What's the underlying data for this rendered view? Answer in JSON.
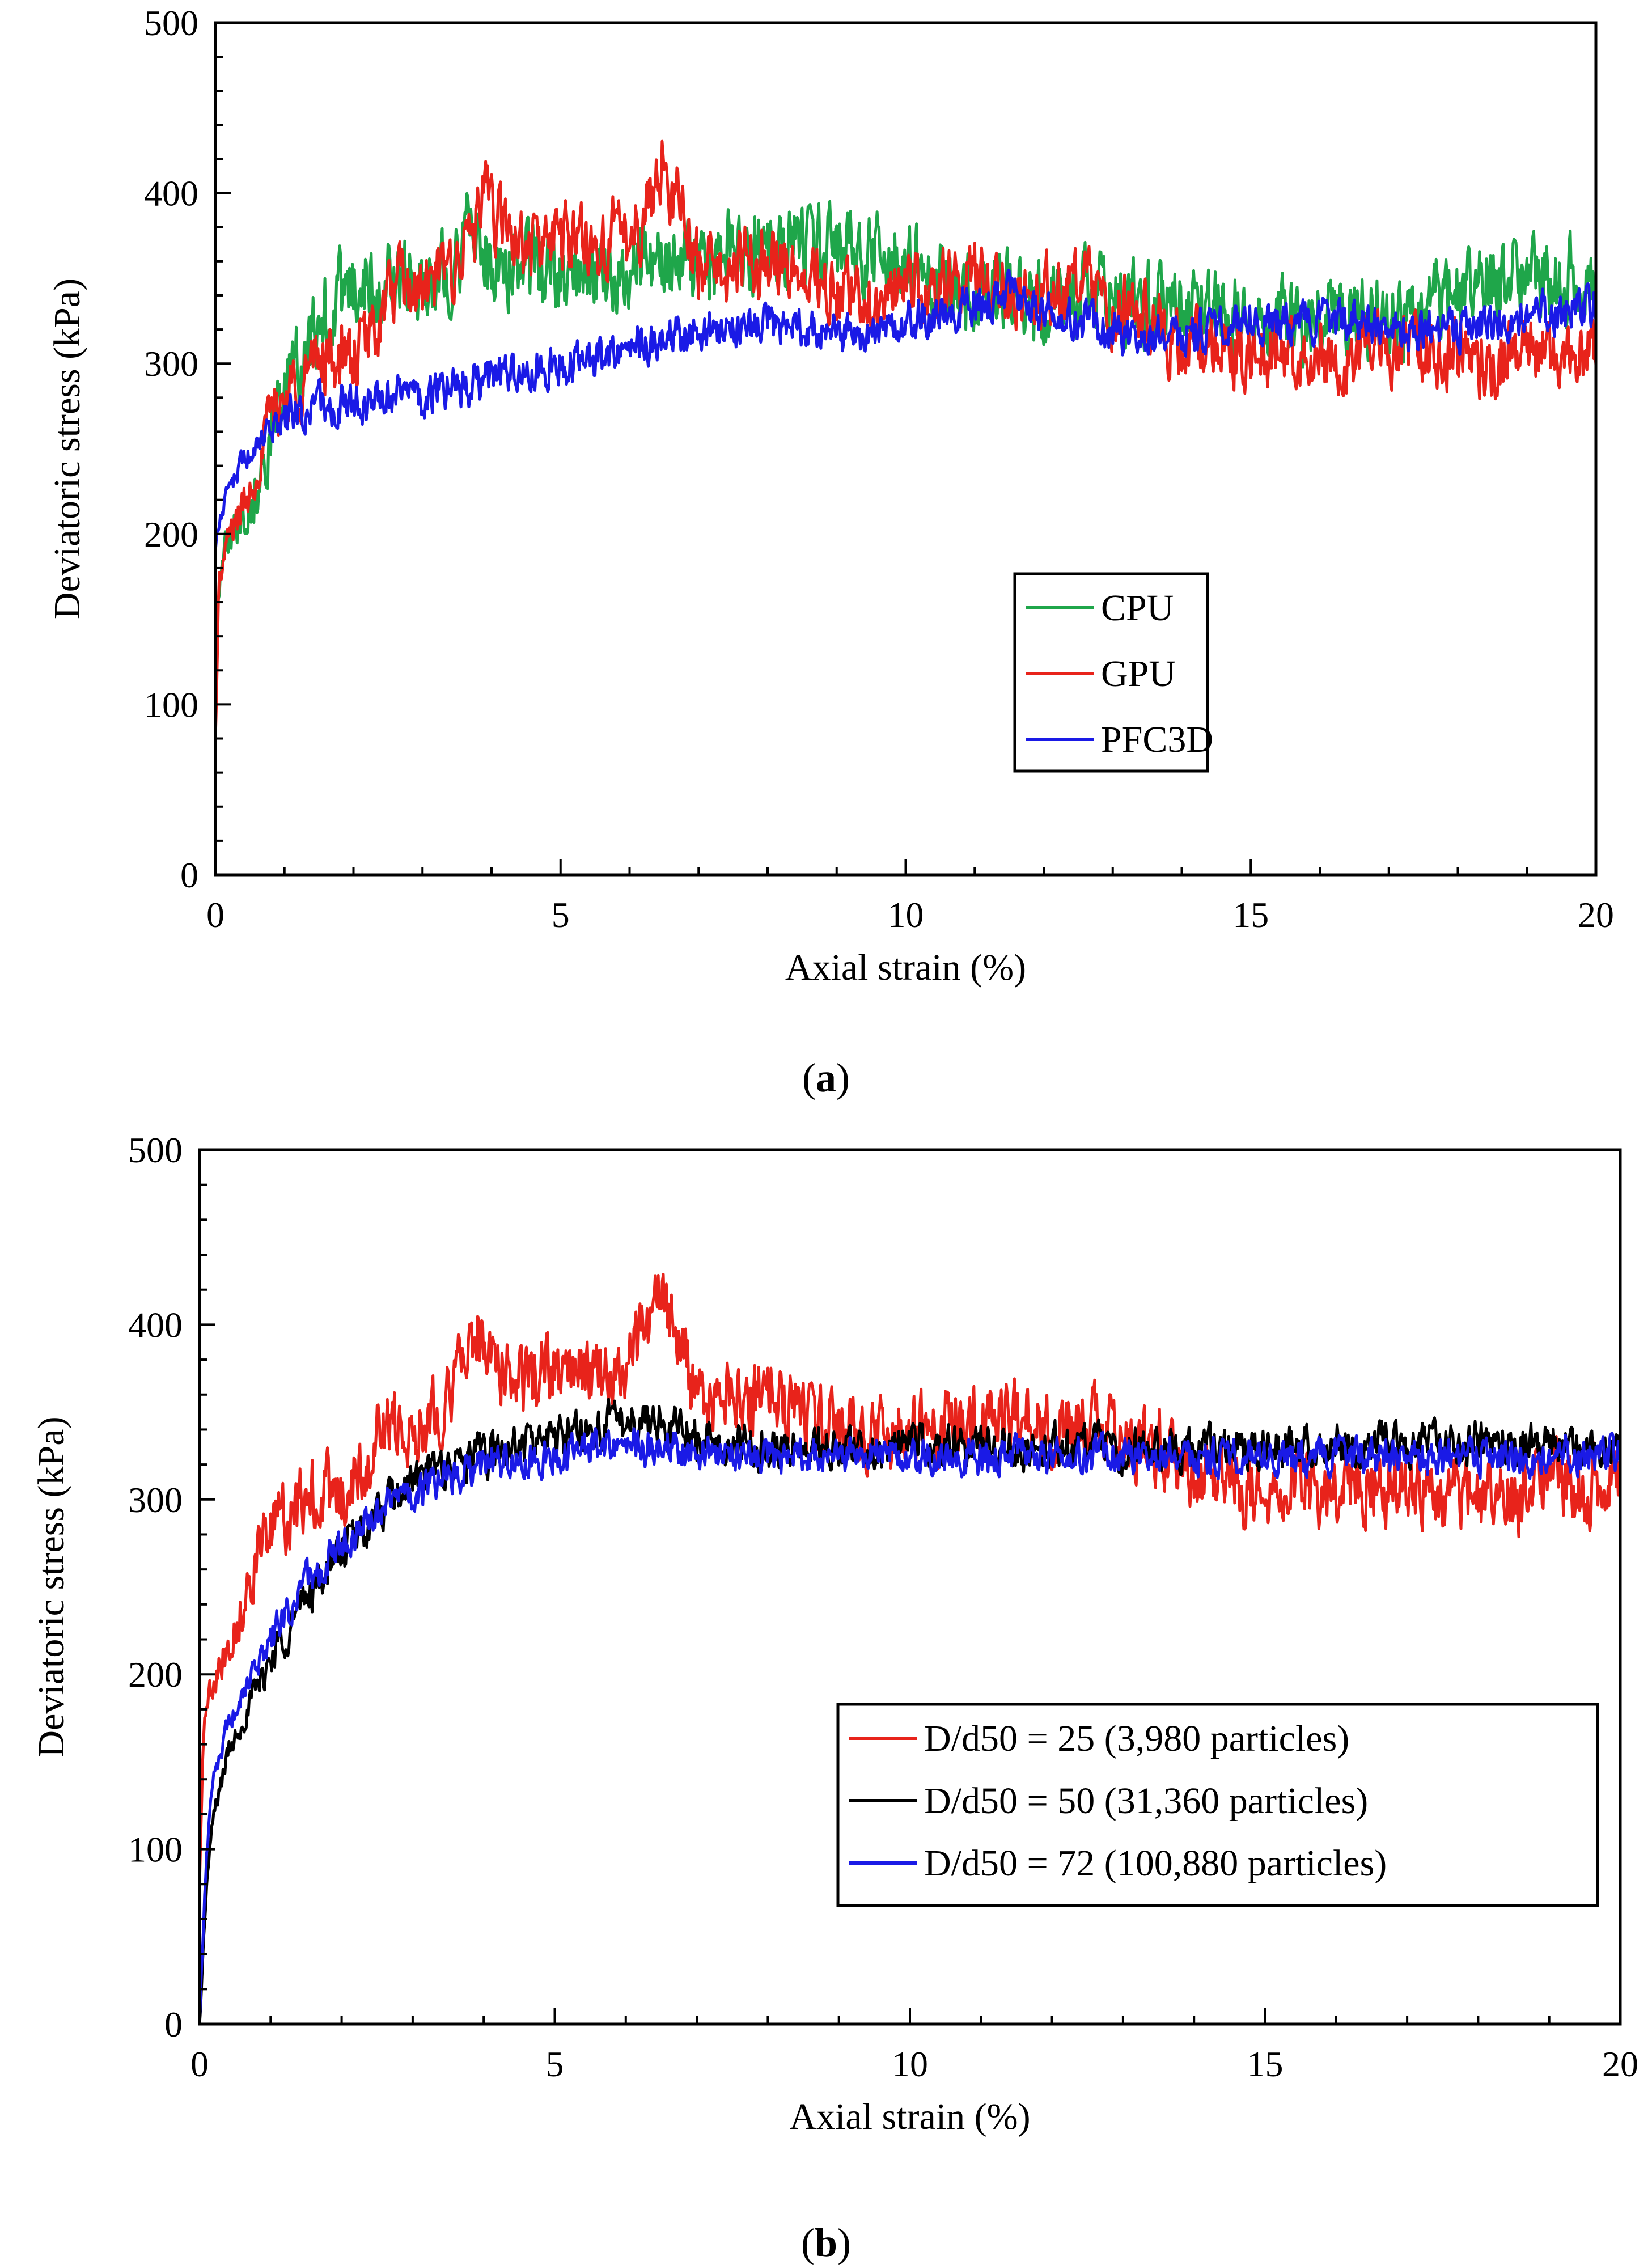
{
  "figure": {
    "captions": [
      "a",
      "b"
    ]
  },
  "chart_data": [
    {
      "type": "line",
      "panel": "a",
      "xlabel": "Axial strain (%)",
      "ylabel": "Deviatoric stress (kPa)",
      "xlim": [
        0,
        20
      ],
      "ylim": [
        0,
        500
      ],
      "xticks": [
        0,
        5,
        10,
        15,
        20
      ],
      "yticks": [
        0,
        100,
        200,
        300,
        400,
        500
      ],
      "grid": false,
      "legend_position": "center-right",
      "series": [
        {
          "name": "CPU",
          "color": "#1fa64a",
          "noise": 28,
          "x": [
            0,
            0.2,
            0.5,
            0.8,
            1.2,
            1.6,
            2.0,
            2.5,
            3.0,
            3.5,
            3.7,
            4.0,
            4.5,
            5.0,
            5.5,
            6.0,
            6.5,
            7.0,
            7.5,
            8.0,
            8.5,
            9.0,
            9.5,
            10.0,
            10.5,
            11.0,
            11.5,
            12.0,
            12.5,
            13.0,
            13.5,
            14.0,
            14.5,
            15.0,
            15.5,
            16.0,
            16.5,
            17.0,
            17.5,
            18.0,
            18.5,
            19.0,
            19.5,
            20.0
          ],
          "y": [
            160,
            205,
            215,
            260,
            300,
            330,
            345,
            350,
            352,
            360,
            380,
            355,
            360,
            350,
            350,
            352,
            355,
            360,
            365,
            370,
            372,
            368,
            365,
            360,
            350,
            345,
            340,
            338,
            342,
            340,
            335,
            330,
            330,
            328,
            325,
            325,
            330,
            328,
            335,
            345,
            350,
            345,
            350,
            345
          ]
        },
        {
          "name": "GPU",
          "color": "#e8231b",
          "noise": 24,
          "x": [
            0,
            0.05,
            0.2,
            0.5,
            0.8,
            1.2,
            1.6,
            2.0,
            2.3,
            2.6,
            3.0,
            3.5,
            3.9,
            4.5,
            5.0,
            5.5,
            6.0,
            6.3,
            6.5,
            6.8,
            7.0,
            7.5,
            8.0,
            8.5,
            9.0,
            9.5,
            10.0,
            10.5,
            11.0,
            11.5,
            12.0,
            12.5,
            13.0,
            13.5,
            14.0,
            14.5,
            15.0,
            15.5,
            16.0,
            16.5,
            17.0,
            17.5,
            18.0,
            18.5,
            19.0,
            19.5,
            20.0
          ],
          "y": [
            80,
            170,
            200,
            225,
            270,
            290,
            305,
            300,
            320,
            345,
            340,
            360,
            395,
            365,
            375,
            370,
            375,
            395,
            420,
            380,
            360,
            355,
            365,
            350,
            340,
            338,
            340,
            345,
            350,
            345,
            340,
            345,
            335,
            330,
            310,
            310,
            305,
            308,
            305,
            305,
            310,
            305,
            305,
            300,
            310,
            305,
            315
          ]
        },
        {
          "name": "PFC3D",
          "color": "#1a1ae6",
          "noise": 14,
          "x": [
            0,
            0.1,
            0.3,
            0.6,
            1.0,
            1.5,
            2.0,
            2.5,
            3.0,
            3.5,
            4.0,
            4.5,
            5.0,
            5.5,
            6.0,
            6.5,
            7.0,
            7.5,
            8.0,
            8.5,
            9.0,
            9.5,
            10.0,
            10.5,
            11.0,
            11.5,
            12.0,
            12.5,
            13.0,
            13.5,
            14.0,
            14.5,
            15.0,
            15.5,
            16.0,
            16.5,
            17.0,
            17.5,
            18.0,
            18.5,
            19.0,
            19.5,
            20.0
          ],
          "y": [
            190,
            215,
            235,
            255,
            268,
            275,
            278,
            280,
            282,
            285,
            290,
            295,
            300,
            300,
            310,
            315,
            320,
            320,
            325,
            320,
            318,
            315,
            325,
            330,
            335,
            340,
            330,
            325,
            318,
            315,
            318,
            322,
            325,
            325,
            325,
            325,
            320,
            320,
            320,
            325,
            330,
            330,
            332
          ]
        }
      ],
      "legend": [
        "CPU",
        "GPU",
        "PFC3D"
      ]
    },
    {
      "type": "line",
      "panel": "b",
      "xlabel": "Axial strain (%)",
      "ylabel": "Deviatoric stress (kPa)",
      "xlim": [
        0,
        20
      ],
      "ylim": [
        0,
        500
      ],
      "xticks": [
        0,
        5,
        10,
        15,
        20
      ],
      "yticks": [
        0,
        100,
        200,
        300,
        400,
        500
      ],
      "grid": false,
      "legend_position": "lower-right",
      "series": [
        {
          "name": "D/d50 = 25 (3,980 particles)",
          "color": "#e8231b",
          "noise": 24,
          "x": [
            0,
            0.05,
            0.2,
            0.5,
            0.8,
            1.2,
            1.6,
            2.0,
            2.3,
            2.6,
            3.0,
            3.5,
            3.9,
            4.5,
            5.0,
            5.5,
            6.0,
            6.3,
            6.5,
            6.8,
            7.0,
            7.5,
            8.0,
            8.5,
            9.0,
            9.5,
            10.0,
            10.5,
            11.0,
            11.5,
            12.0,
            12.5,
            13.0,
            13.5,
            14.0,
            14.5,
            15.0,
            15.5,
            16.0,
            16.5,
            17.0,
            17.5,
            18.0,
            18.5,
            19.0,
            19.5,
            20.0
          ],
          "y": [
            80,
            170,
            200,
            225,
            270,
            290,
            305,
            300,
            320,
            345,
            340,
            360,
            395,
            365,
            375,
            370,
            375,
            395,
            420,
            380,
            360,
            355,
            365,
            350,
            340,
            338,
            340,
            345,
            350,
            345,
            340,
            345,
            335,
            330,
            310,
            310,
            305,
            308,
            305,
            305,
            310,
            305,
            305,
            300,
            310,
            305,
            315
          ]
        },
        {
          "name": "D/d50 = 50 (31,360 particles)",
          "color": "#000000",
          "noise": 14,
          "x": [
            0,
            0.05,
            0.1,
            0.2,
            0.4,
            0.6,
            0.8,
            1.0,
            1.3,
            1.6,
            2.0,
            2.5,
            3.0,
            3.5,
            4.0,
            4.5,
            5.0,
            5.5,
            6.0,
            6.5,
            7.0,
            7.5,
            8.0,
            9.0,
            10.0,
            11.0,
            12.0,
            13.0,
            14.0,
            15.0,
            16.0,
            17.0,
            18.0,
            19.0,
            20.0
          ],
          "y": [
            0,
            40,
            80,
            120,
            155,
            175,
            190,
            210,
            230,
            250,
            270,
            290,
            310,
            320,
            325,
            330,
            335,
            340,
            345,
            345,
            335,
            330,
            330,
            328,
            330,
            330,
            330,
            330,
            330,
            330,
            332,
            332,
            332,
            332,
            330
          ]
        },
        {
          "name": "D/d50 = 72 (100,880 particles)",
          "color": "#1a1ae6",
          "noise": 12,
          "x": [
            0,
            0.05,
            0.1,
            0.2,
            0.4,
            0.6,
            0.8,
            1.0,
            1.3,
            1.6,
            2.0,
            2.5,
            3.0,
            3.5,
            4.0,
            4.5,
            5.0,
            5.5,
            6.0,
            6.5,
            7.0,
            7.5,
            8.0,
            9.0,
            10.0,
            11.0,
            12.0,
            13.0,
            14.0,
            15.0,
            16.0,
            17.0,
            18.0,
            19.0,
            20.0
          ],
          "y": [
            0,
            50,
            100,
            140,
            170,
            190,
            205,
            220,
            240,
            258,
            275,
            292,
            305,
            312,
            318,
            322,
            325,
            328,
            332,
            330,
            328,
            326,
            325,
            325,
            325,
            325,
            325,
            325,
            325,
            325,
            325,
            325,
            325,
            325,
            325
          ]
        }
      ],
      "legend": [
        "D/d50 = 25 (3,980 particles)",
        "D/d50 = 50 (31,360 particles)",
        "D/d50 = 72 (100,880 particles)"
      ]
    }
  ]
}
